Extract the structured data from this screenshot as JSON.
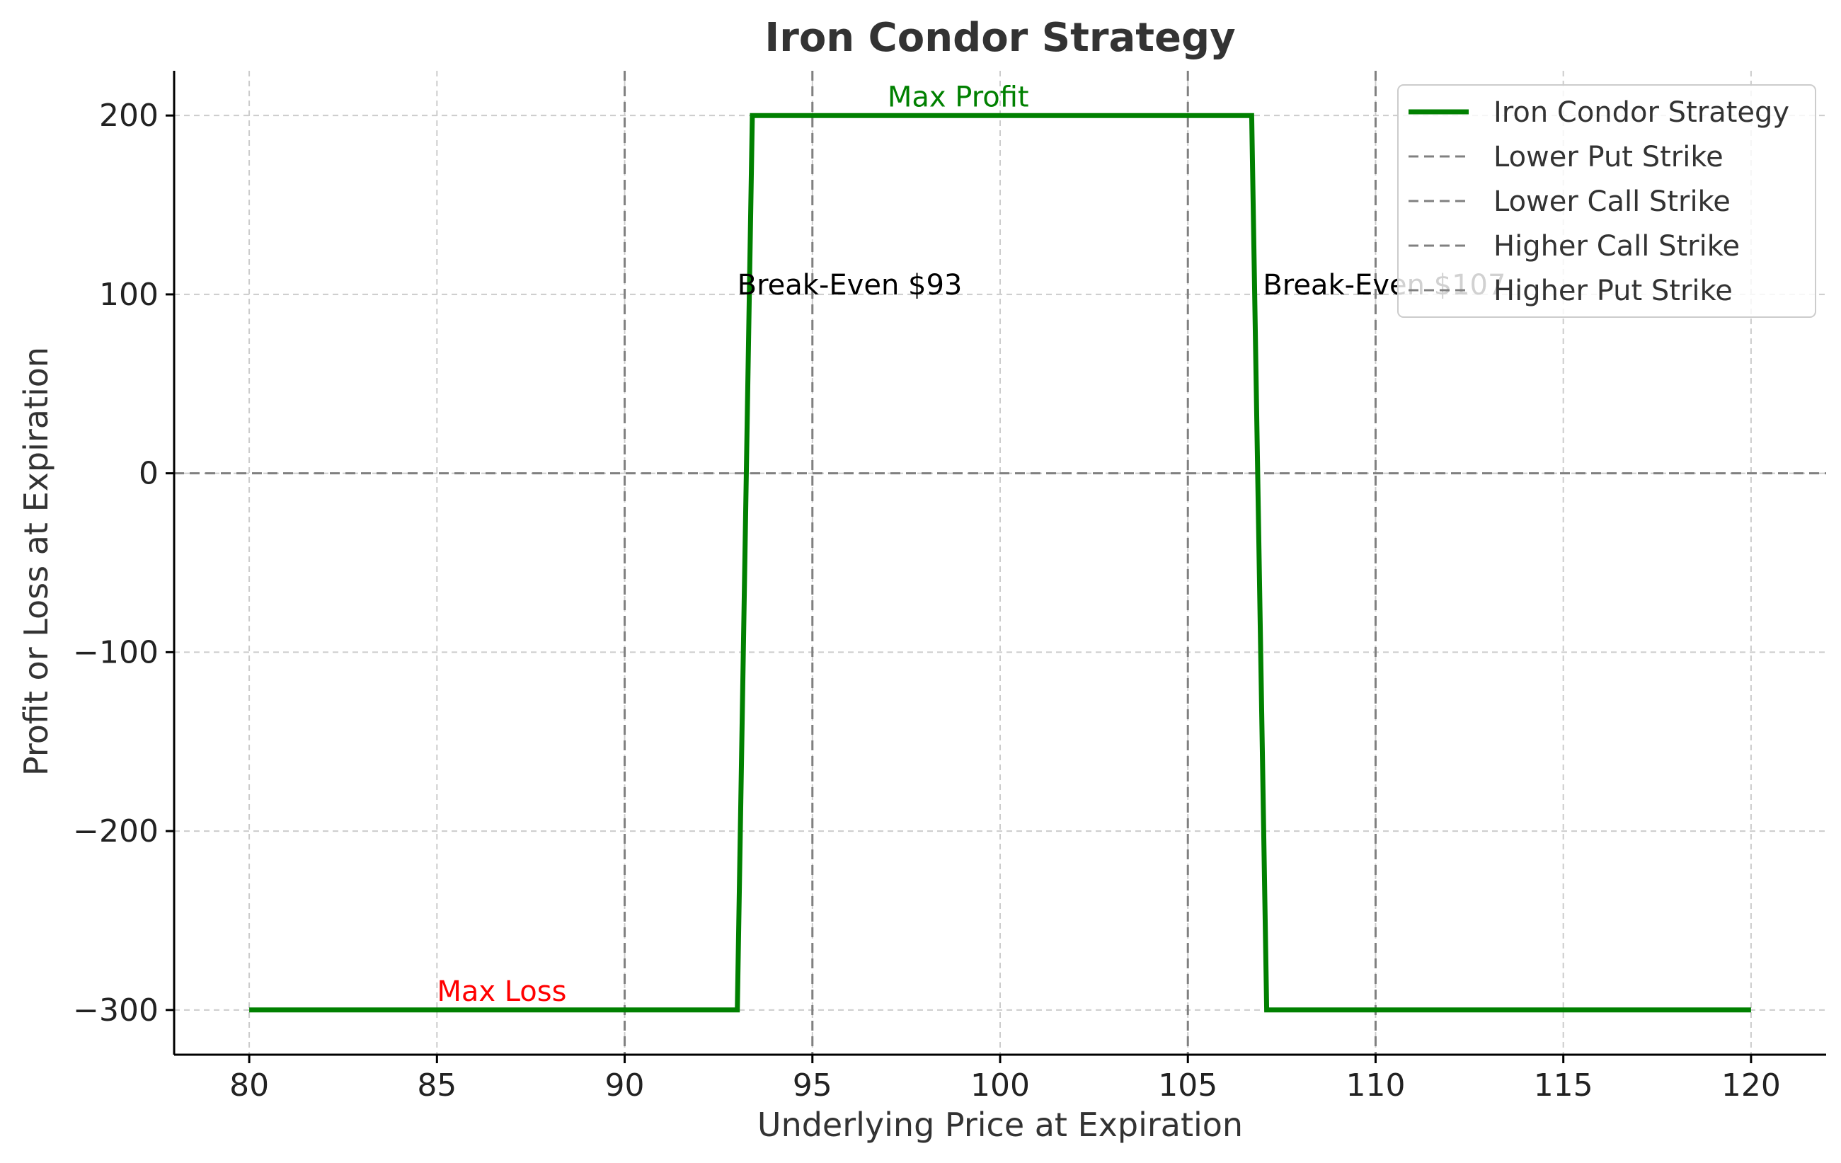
{
  "chart_data": {
    "type": "line",
    "title": "Iron Condor Strategy",
    "xlabel": "Underlying Price at Expiration",
    "ylabel": "Profit or Loss at Expiration",
    "xlim": [
      78,
      122
    ],
    "ylim": [
      -325,
      225
    ],
    "grid": true,
    "x_ticks": [
      80,
      85,
      90,
      95,
      100,
      105,
      110,
      115,
      120
    ],
    "y_ticks": [
      -300,
      -200,
      -100,
      0,
      100,
      200
    ],
    "y_tick_labels": [
      "−300",
      "−200",
      "−100",
      "0",
      "100",
      "200"
    ],
    "series": [
      {
        "name": "Iron Condor Strategy",
        "color": "#008000",
        "x": [
          80,
          93,
          93.4,
          106.7,
          107.1,
          120
        ],
        "y": [
          -300,
          -300,
          200,
          200,
          -300,
          -300
        ]
      }
    ],
    "reference_lines": [
      {
        "name": "Lower Put Strike",
        "orientation": "vertical",
        "x": 90,
        "color": "#808080"
      },
      {
        "name": "Lower Call Strike",
        "orientation": "vertical",
        "x": 95,
        "color": "#808080"
      },
      {
        "name": "Higher Call Strike",
        "orientation": "vertical",
        "x": 105,
        "color": "#808080"
      },
      {
        "name": "Higher Put Strike",
        "orientation": "vertical",
        "x": 110,
        "color": "#808080"
      },
      {
        "name": "",
        "orientation": "horizontal",
        "y": 0,
        "color": "#808080"
      }
    ],
    "annotations": [
      {
        "text": "Max Profit",
        "x": 97,
        "y": 205,
        "color": "#008000"
      },
      {
        "text": "Break-Even $93",
        "x": 93,
        "y": 100,
        "color": "#000000"
      },
      {
        "text": "Break-Even $107",
        "x": 107,
        "y": 100,
        "color": "#000000"
      },
      {
        "text": "Max Loss",
        "x": 85,
        "y": -295,
        "color": "#ff0000"
      }
    ],
    "legend": {
      "placement": "top-right",
      "entries": [
        {
          "label": "Iron Condor Strategy",
          "style": "solid",
          "color": "#008000"
        },
        {
          "label": "Lower Put Strike",
          "style": "dashed",
          "color": "#808080"
        },
        {
          "label": "Lower Call Strike",
          "style": "dashed",
          "color": "#808080"
        },
        {
          "label": "Higher Call Strike",
          "style": "dashed",
          "color": "#808080"
        },
        {
          "label": "Higher Put Strike",
          "style": "dashed",
          "color": "#808080"
        }
      ]
    }
  }
}
